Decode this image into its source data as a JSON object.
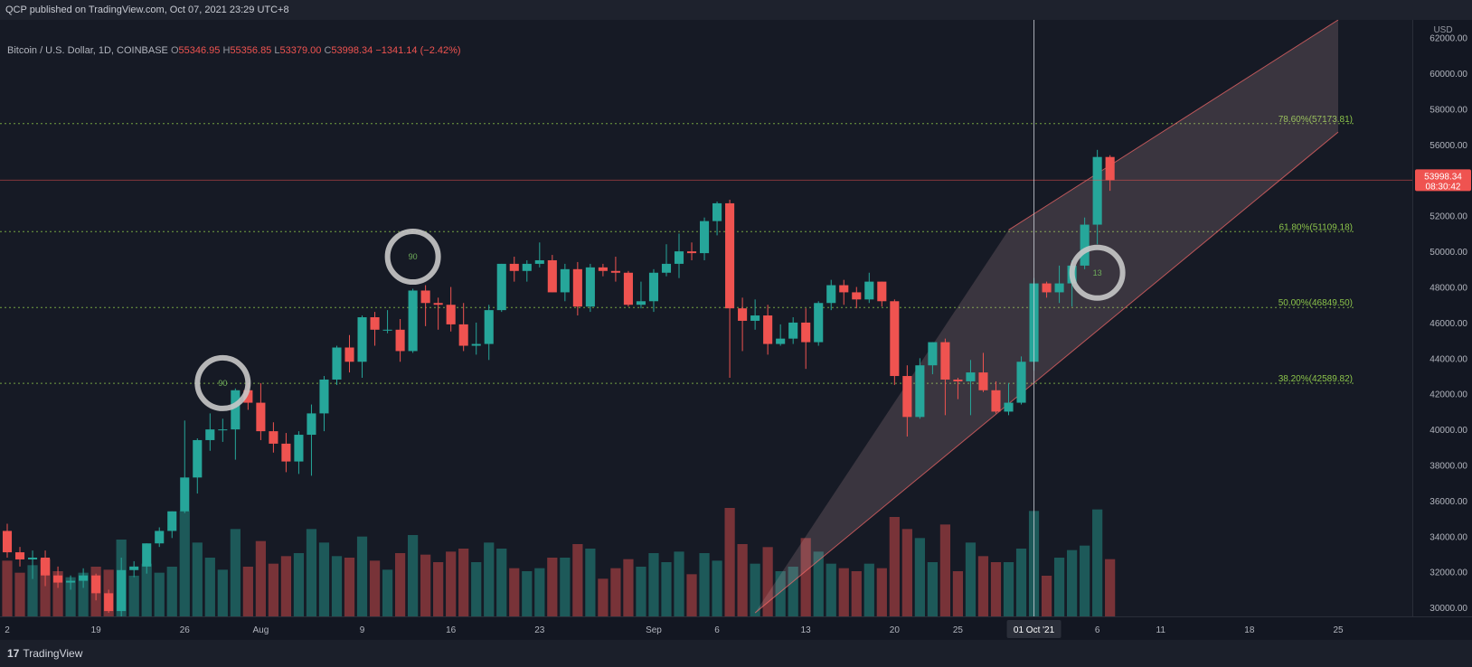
{
  "header": {
    "published": "QCP published on TradingView.com, Oct 07, 2021 23:29 UTC+8"
  },
  "legend": {
    "symbol": "Bitcoin / U.S. Dollar, 1D, COINBASE",
    "o_label": "O",
    "o_value": "55346.95",
    "h_label": "H",
    "h_value": "55356.85",
    "l_label": "L",
    "l_value": "53379.00",
    "c_label": "C",
    "c_value": "53998.34",
    "change": "−1341.14 (−2.42%)"
  },
  "axis": {
    "currency": "USD",
    "current_price": "53998.34",
    "countdown": "08:30:42",
    "crosshair_date": "01 Oct '21"
  },
  "footer": {
    "brand": "TradingView"
  },
  "colors": {
    "up": "#26a69a",
    "down": "#ef5350",
    "fib": "#8bc34a",
    "channel": "#ff6b6b",
    "background": "#161a25"
  },
  "chart_data": {
    "type": "candlestick",
    "title": "Bitcoin / U.S. Dollar, 1D, COINBASE",
    "ylim": [
      29500,
      63000
    ],
    "y_ticks": [
      30000,
      32000,
      34000,
      36000,
      38000,
      40000,
      42000,
      44000,
      46000,
      48000,
      50000,
      52000,
      54000,
      56000,
      58000,
      60000,
      62000
    ],
    "y_tick_labels": [
      "30000.00",
      "32000.00",
      "34000.00",
      "36000.00",
      "38000.00",
      "40000.00",
      "42000.00",
      "44000.00",
      "46000.00",
      "48000.00",
      "50000.00",
      "52000.00",
      "54000.00",
      "56000.00",
      "58000.00",
      "60000.00",
      "62000.00"
    ],
    "x_tick_labels": [
      "2",
      "19",
      "26",
      "Aug",
      "9",
      "16",
      "23",
      "Sep",
      "6",
      "13",
      "20",
      "25",
      "01 Oct '21",
      "6",
      "11",
      "18",
      "25"
    ],
    "x_range": [
      "2021-07-12",
      "2021-10-25"
    ],
    "x_ticks": [
      "2021-07-12",
      "2021-07-19",
      "2021-07-26",
      "2021-08-01",
      "2021-08-09",
      "2021-08-16",
      "2021-08-23",
      "2021-09-01",
      "2021-09-06",
      "2021-09-13",
      "2021-09-20",
      "2021-09-25",
      "2021-10-01",
      "2021-10-06",
      "2021-10-11",
      "2021-10-18",
      "2021-10-25"
    ],
    "fib_levels": [
      {
        "label": "78.60%(57173.81)",
        "value": 57173.81
      },
      {
        "label": "61.80%(51109.18)",
        "value": 51109.18
      },
      {
        "label": "50.00%(46849.50)",
        "value": 46849.5
      },
      {
        "label": "38.20%(42589.82)",
        "value": 42589.82
      }
    ],
    "channel": {
      "upper": [
        [
          "2021-09-29",
          51200
        ],
        [
          "2021-10-25",
          63000
        ]
      ],
      "lower": [
        [
          "2021-09-09",
          29700
        ],
        [
          "2021-10-25",
          56700
        ]
      ]
    },
    "markers": [
      {
        "date": "2021-07-29",
        "value": 42600,
        "label": "90"
      },
      {
        "date": "2021-08-13",
        "value": 49700,
        "label": "90"
      },
      {
        "date": "2021-10-06",
        "value": 48800,
        "label": "13"
      }
    ],
    "candles": [
      {
        "d": "2021-07-12",
        "o": 34300,
        "h": 34700,
        "l": 32800,
        "c": 33100
      },
      {
        "d": "2021-07-13",
        "o": 33100,
        "h": 33400,
        "l": 32300,
        "c": 32700
      },
      {
        "d": "2021-07-14",
        "o": 32700,
        "h": 33200,
        "l": 31600,
        "c": 32800
      },
      {
        "d": "2021-07-15",
        "o": 32800,
        "h": 33200,
        "l": 31200,
        "c": 31800
      },
      {
        "d": "2021-07-16",
        "o": 31800,
        "h": 32300,
        "l": 31100,
        "c": 31400
      },
      {
        "d": "2021-07-17",
        "o": 31400,
        "h": 31800,
        "l": 31000,
        "c": 31500
      },
      {
        "d": "2021-07-18",
        "o": 31500,
        "h": 32200,
        "l": 31100,
        "c": 31800
      },
      {
        "d": "2021-07-19",
        "o": 31800,
        "h": 31900,
        "l": 30400,
        "c": 30800
      },
      {
        "d": "2021-07-20",
        "o": 30800,
        "h": 31000,
        "l": 29700,
        "c": 29800
      },
      {
        "d": "2021-07-21",
        "o": 29800,
        "h": 32800,
        "l": 29500,
        "c": 32100
      },
      {
        "d": "2021-07-22",
        "o": 32100,
        "h": 32600,
        "l": 31700,
        "c": 32300
      },
      {
        "d": "2021-07-23",
        "o": 32300,
        "h": 33600,
        "l": 31900,
        "c": 33600
      },
      {
        "d": "2021-07-24",
        "o": 33600,
        "h": 34500,
        "l": 33400,
        "c": 34300
      },
      {
        "d": "2021-07-25",
        "o": 34300,
        "h": 35400,
        "l": 33900,
        "c": 35400
      },
      {
        "d": "2021-07-26",
        "o": 35400,
        "h": 40500,
        "l": 35300,
        "c": 37300
      },
      {
        "d": "2021-07-27",
        "o": 37300,
        "h": 39500,
        "l": 36400,
        "c": 39400
      },
      {
        "d": "2021-07-28",
        "o": 39400,
        "h": 40900,
        "l": 38800,
        "c": 40000
      },
      {
        "d": "2021-07-29",
        "o": 40000,
        "h": 40600,
        "l": 39300,
        "c": 40000
      },
      {
        "d": "2021-07-30",
        "o": 40000,
        "h": 42300,
        "l": 38300,
        "c": 42200
      },
      {
        "d": "2021-07-31",
        "o": 42200,
        "h": 42600,
        "l": 41100,
        "c": 41500
      },
      {
        "d": "2021-08-01",
        "o": 41500,
        "h": 42600,
        "l": 39400,
        "c": 39900
      },
      {
        "d": "2021-08-02",
        "o": 39900,
        "h": 40400,
        "l": 38700,
        "c": 39200
      },
      {
        "d": "2021-08-03",
        "o": 39200,
        "h": 39800,
        "l": 37600,
        "c": 38200
      },
      {
        "d": "2021-08-04",
        "o": 38200,
        "h": 39900,
        "l": 37500,
        "c": 39700
      },
      {
        "d": "2021-08-05",
        "o": 39700,
        "h": 41400,
        "l": 37400,
        "c": 40900
      },
      {
        "d": "2021-08-06",
        "o": 40900,
        "h": 43000,
        "l": 39900,
        "c": 42800
      },
      {
        "d": "2021-08-07",
        "o": 42800,
        "h": 44700,
        "l": 42500,
        "c": 44600
      },
      {
        "d": "2021-08-08",
        "o": 44600,
        "h": 45300,
        "l": 43200,
        "c": 43800
      },
      {
        "d": "2021-08-09",
        "o": 43800,
        "h": 46400,
        "l": 42900,
        "c": 46300
      },
      {
        "d": "2021-08-10",
        "o": 46300,
        "h": 46600,
        "l": 44700,
        "c": 45600
      },
      {
        "d": "2021-08-11",
        "o": 45600,
        "h": 46700,
        "l": 45400,
        "c": 45600
      },
      {
        "d": "2021-08-12",
        "o": 45600,
        "h": 46200,
        "l": 43800,
        "c": 44400
      },
      {
        "d": "2021-08-13",
        "o": 44400,
        "h": 47900,
        "l": 44300,
        "c": 47800
      },
      {
        "d": "2021-08-14",
        "o": 47800,
        "h": 48100,
        "l": 45800,
        "c": 47100
      },
      {
        "d": "2021-08-15",
        "o": 47100,
        "h": 47400,
        "l": 45600,
        "c": 47000
      },
      {
        "d": "2021-08-16",
        "o": 47000,
        "h": 48000,
        "l": 45500,
        "c": 45900
      },
      {
        "d": "2021-08-17",
        "o": 45900,
        "h": 47100,
        "l": 44400,
        "c": 44700
      },
      {
        "d": "2021-08-18",
        "o": 44700,
        "h": 46000,
        "l": 44200,
        "c": 44800
      },
      {
        "d": "2021-08-19",
        "o": 44800,
        "h": 47000,
        "l": 43900,
        "c": 46700
      },
      {
        "d": "2021-08-20",
        "o": 46700,
        "h": 49300,
        "l": 46600,
        "c": 49300
      },
      {
        "d": "2021-08-21",
        "o": 49300,
        "h": 49700,
        "l": 48300,
        "c": 48900
      },
      {
        "d": "2021-08-22",
        "o": 48900,
        "h": 49500,
        "l": 48300,
        "c": 49300
      },
      {
        "d": "2021-08-23",
        "o": 49300,
        "h": 50500,
        "l": 49100,
        "c": 49500
      },
      {
        "d": "2021-08-24",
        "o": 49500,
        "h": 49800,
        "l": 47700,
        "c": 47700
      },
      {
        "d": "2021-08-25",
        "o": 47700,
        "h": 49300,
        "l": 47200,
        "c": 49000
      },
      {
        "d": "2021-08-26",
        "o": 49000,
        "h": 49400,
        "l": 46400,
        "c": 46900
      },
      {
        "d": "2021-08-27",
        "o": 46900,
        "h": 49300,
        "l": 46600,
        "c": 49100
      },
      {
        "d": "2021-08-28",
        "o": 49100,
        "h": 49300,
        "l": 48600,
        "c": 48900
      },
      {
        "d": "2021-08-29",
        "o": 48900,
        "h": 49700,
        "l": 48300,
        "c": 48800
      },
      {
        "d": "2021-08-30",
        "o": 48800,
        "h": 48900,
        "l": 46900,
        "c": 47000
      },
      {
        "d": "2021-08-31",
        "o": 47000,
        "h": 48300,
        "l": 46800,
        "c": 47200
      },
      {
        "d": "2021-09-01",
        "o": 47200,
        "h": 49000,
        "l": 46600,
        "c": 48800
      },
      {
        "d": "2021-09-02",
        "o": 48800,
        "h": 50400,
        "l": 48600,
        "c": 49300
      },
      {
        "d": "2021-09-03",
        "o": 49300,
        "h": 51000,
        "l": 48500,
        "c": 50000
      },
      {
        "d": "2021-09-04",
        "o": 50000,
        "h": 50500,
        "l": 49500,
        "c": 49900
      },
      {
        "d": "2021-09-05",
        "o": 49900,
        "h": 51900,
        "l": 49500,
        "c": 51700
      },
      {
        "d": "2021-09-06",
        "o": 51700,
        "h": 52800,
        "l": 50900,
        "c": 52700
      },
      {
        "d": "2021-09-07",
        "o": 52700,
        "h": 52900,
        "l": 42900,
        "c": 46800
      },
      {
        "d": "2021-09-08",
        "o": 46800,
        "h": 47400,
        "l": 44400,
        "c": 46100
      },
      {
        "d": "2021-09-09",
        "o": 46100,
        "h": 47300,
        "l": 45600,
        "c": 46400
      },
      {
        "d": "2021-09-10",
        "o": 46400,
        "h": 47000,
        "l": 44200,
        "c": 44800
      },
      {
        "d": "2021-09-11",
        "o": 44800,
        "h": 45900,
        "l": 44700,
        "c": 45100
      },
      {
        "d": "2021-09-12",
        "o": 45100,
        "h": 46300,
        "l": 44800,
        "c": 46000
      },
      {
        "d": "2021-09-13",
        "o": 46000,
        "h": 46800,
        "l": 43400,
        "c": 44900
      },
      {
        "d": "2021-09-14",
        "o": 44900,
        "h": 47200,
        "l": 44700,
        "c": 47100
      },
      {
        "d": "2021-09-15",
        "o": 47100,
        "h": 48400,
        "l": 46700,
        "c": 48100
      },
      {
        "d": "2021-09-16",
        "o": 48100,
        "h": 48400,
        "l": 47000,
        "c": 47700
      },
      {
        "d": "2021-09-17",
        "o": 47700,
        "h": 48000,
        "l": 46800,
        "c": 47300
      },
      {
        "d": "2021-09-18",
        "o": 47300,
        "h": 48800,
        "l": 47100,
        "c": 48300
      },
      {
        "d": "2021-09-19",
        "o": 48300,
        "h": 48300,
        "l": 46900,
        "c": 47200
      },
      {
        "d": "2021-09-20",
        "o": 47200,
        "h": 47300,
        "l": 42500,
        "c": 43000
      },
      {
        "d": "2021-09-21",
        "o": 43000,
        "h": 43600,
        "l": 39600,
        "c": 40700
      },
      {
        "d": "2021-09-22",
        "o": 40700,
        "h": 44000,
        "l": 40600,
        "c": 43600
      },
      {
        "d": "2021-09-23",
        "o": 43600,
        "h": 44900,
        "l": 43100,
        "c": 44900
      },
      {
        "d": "2021-09-24",
        "o": 44900,
        "h": 45100,
        "l": 40800,
        "c": 42800
      },
      {
        "d": "2021-09-25",
        "o": 42800,
        "h": 42900,
        "l": 41700,
        "c": 42700
      },
      {
        "d": "2021-09-26",
        "o": 42700,
        "h": 43900,
        "l": 40800,
        "c": 43200
      },
      {
        "d": "2021-09-27",
        "o": 43200,
        "h": 44300,
        "l": 42100,
        "c": 42200
      },
      {
        "d": "2021-09-28",
        "o": 42200,
        "h": 42700,
        "l": 40900,
        "c": 41000
      },
      {
        "d": "2021-09-29",
        "o": 41000,
        "h": 42600,
        "l": 40800,
        "c": 41500
      },
      {
        "d": "2021-09-30",
        "o": 41500,
        "h": 44100,
        "l": 41400,
        "c": 43800
      },
      {
        "d": "2021-10-01",
        "o": 43800,
        "h": 48500,
        "l": 43300,
        "c": 48200
      },
      {
        "d": "2021-10-02",
        "o": 48200,
        "h": 48300,
        "l": 47400,
        "c": 47700
      },
      {
        "d": "2021-10-03",
        "o": 47700,
        "h": 49200,
        "l": 47100,
        "c": 48200
      },
      {
        "d": "2021-10-04",
        "o": 48200,
        "h": 49500,
        "l": 46900,
        "c": 49200
      },
      {
        "d": "2021-10-05",
        "o": 49200,
        "h": 51900,
        "l": 49000,
        "c": 51500
      },
      {
        "d": "2021-10-06",
        "o": 51500,
        "h": 55700,
        "l": 50400,
        "c": 55300
      },
      {
        "d": "2021-10-07",
        "o": 55300,
        "h": 55400,
        "l": 53400,
        "c": 54000
      }
    ]
  }
}
